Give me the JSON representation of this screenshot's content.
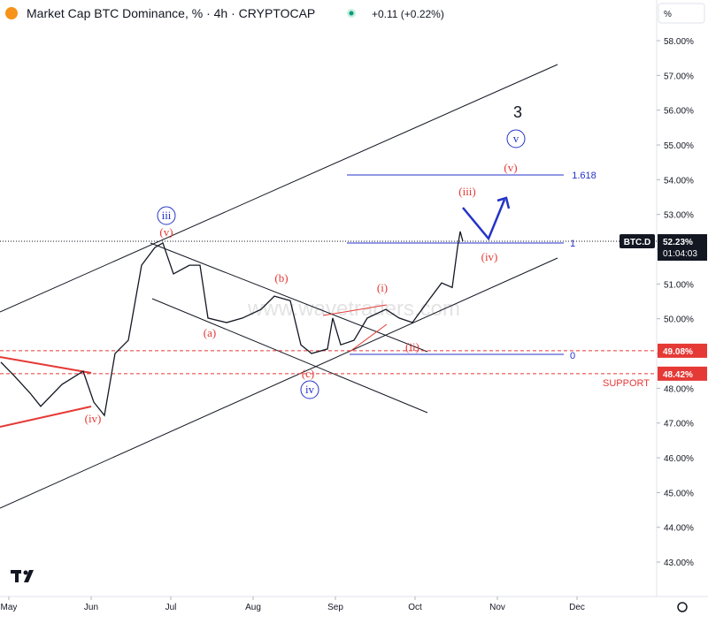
{
  "header": {
    "title": "Market Cap BTC Dominance, % · 4h · CRYPTOCAP",
    "change": "+0.11 (+0.22%)"
  },
  "chart_data": {
    "type": "line",
    "x": [
      -3,
      2,
      8,
      12,
      20,
      28,
      32,
      36,
      40,
      45,
      50,
      55,
      58,
      62,
      68,
      72,
      75,
      82,
      88,
      95,
      100,
      106,
      110,
      114,
      120,
      122,
      125,
      130,
      135,
      142,
      147,
      152,
      158,
      163,
      167,
      169,
      170,
      171
    ],
    "series": [
      {
        "name": "BTC.D",
        "color": "#131722",
        "values": [
          48.75,
          48.36,
          47.86,
          47.48,
          48.11,
          48.49,
          47.6,
          47.22,
          49.0,
          49.38,
          51.54,
          52.05,
          52.18,
          51.29,
          51.54,
          51.54,
          50.02,
          49.89,
          50.02,
          50.27,
          50.65,
          50.52,
          49.25,
          49.0,
          49.13,
          50.02,
          49.25,
          49.38,
          50.02,
          50.27,
          50.02,
          49.89,
          50.52,
          51.03,
          50.9,
          52.05,
          52.51,
          52.23
        ]
      }
    ],
    "xlim": [
      -3.33,
      244
    ],
    "xticks": [
      {
        "value": 0,
        "label": "May"
      },
      {
        "value": 31,
        "label": "Jun"
      },
      {
        "value": 61,
        "label": "Jul"
      },
      {
        "value": 92,
        "label": "Aug"
      },
      {
        "value": 123,
        "label": "Sep"
      },
      {
        "value": 153,
        "label": "Oct"
      },
      {
        "value": 184,
        "label": "Nov"
      },
      {
        "value": 214,
        "label": "Dec"
      }
    ],
    "ylim": [
      42.01,
      59.17
    ],
    "yticks": [
      {
        "value": 43,
        "label": "43.00%"
      },
      {
        "value": 44,
        "label": "44.00%"
      },
      {
        "value": 45,
        "label": "45.00%"
      },
      {
        "value": 46,
        "label": "46.00%"
      },
      {
        "value": 47,
        "label": "47.00%"
      },
      {
        "value": 48,
        "label": "48.00%"
      },
      {
        "value": 49,
        "label": "49.00%"
      },
      {
        "value": 50,
        "label": "50.00%"
      },
      {
        "value": 51,
        "label": "51.00%"
      },
      {
        "value": 52,
        "label": "52.00%"
      },
      {
        "value": 53,
        "label": "53.00%"
      },
      {
        "value": 54,
        "label": "54.00%"
      },
      {
        "value": 55,
        "label": "55.00%"
      },
      {
        "value": 56,
        "label": "56.00%"
      },
      {
        "value": 57,
        "label": "57.00%"
      },
      {
        "value": 58,
        "label": "58.00%"
      }
    ],
    "unit": "%",
    "last_price": {
      "value": 52.23,
      "label": "52.23%",
      "countdown": "01:04:03"
    },
    "levels": [
      {
        "value": 49.08,
        "label": "49.08%",
        "color": "#e53935"
      },
      {
        "value": 48.42,
        "label": "48.42%",
        "color": "#e53935",
        "text": "SUPPORT"
      }
    ],
    "fib_labels": [
      "1.618",
      "1",
      "0"
    ],
    "watermark": "www.wavetraders.com",
    "annotations": [
      "3",
      "v",
      "(v)",
      "(iii)",
      "(iv)",
      "(i)",
      "(ii)",
      "(b)",
      "(a)",
      "(c)",
      "iv",
      "iii",
      "(v)",
      "(iv)"
    ]
  }
}
